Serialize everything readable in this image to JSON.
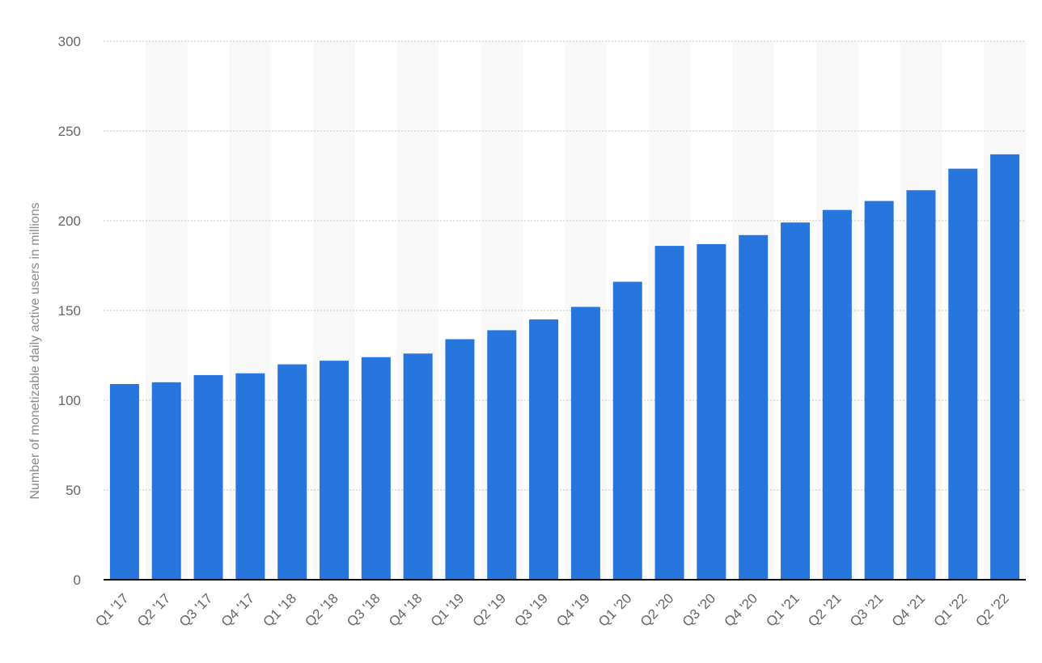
{
  "chart_data": {
    "type": "bar",
    "title": "",
    "xlabel": "",
    "ylabel": "Number of monetizable daily active users in millions",
    "ylim": [
      0,
      300
    ],
    "yticks": [
      0,
      50,
      100,
      150,
      200,
      250,
      300
    ],
    "grid": true,
    "bar_color": "#2776dd",
    "categories": [
      "Q1 '17",
      "Q2 '17",
      "Q3 '17",
      "Q4 '17",
      "Q1 '18",
      "Q2 '18",
      "Q3 '18",
      "Q4 '18",
      "Q1 '19",
      "Q2 '19",
      "Q3 '19",
      "Q4 '19",
      "Q1 '20",
      "Q2 '20",
      "Q3 '20",
      "Q4 '20",
      "Q1 '21",
      "Q2 '21",
      "Q3 '21",
      "Q4 '21",
      "Q1 '22",
      "Q2 '22"
    ],
    "values": [
      109,
      110,
      114,
      115,
      120,
      122,
      124,
      126,
      134,
      139,
      145,
      152,
      166,
      186,
      187,
      192,
      199,
      206,
      211,
      217,
      229,
      237
    ]
  }
}
